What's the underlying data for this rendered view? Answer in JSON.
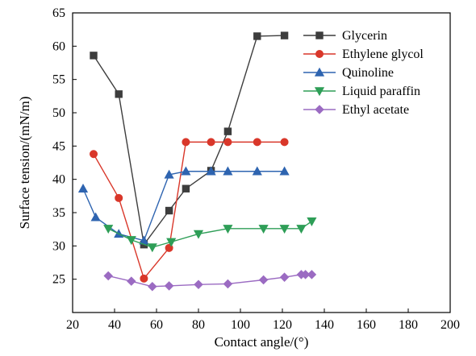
{
  "chart_data": {
    "type": "line",
    "title": "",
    "xlabel": "Contact angle/(°)",
    "ylabel": "Surface tension/(mN/m)",
    "xlim": [
      20,
      200
    ],
    "ylim": [
      20,
      65
    ],
    "xticks": [
      20,
      40,
      60,
      80,
      100,
      120,
      140,
      160,
      180,
      200
    ],
    "yticks": [
      25,
      30,
      35,
      40,
      45,
      50,
      55,
      60,
      65
    ],
    "xtick_labels": [
      "20",
      "40",
      "60",
      "80",
      "100",
      "120",
      "140",
      "160",
      "180",
      "200"
    ],
    "ytick_labels": [
      "25",
      "30",
      "35",
      "40",
      "45",
      "50",
      "55",
      "60",
      "65"
    ],
    "grid": false,
    "legend_position": "top-right",
    "series": [
      {
        "name": "Glycerin",
        "color": "#3d3d3d",
        "marker": "square",
        "points": [
          [
            30,
            58.6
          ],
          [
            42,
            52.8
          ],
          [
            54,
            30.2
          ],
          [
            66,
            35.3
          ],
          [
            74,
            38.6
          ],
          [
            86,
            41.3
          ],
          [
            94,
            47.2
          ],
          [
            108,
            61.5
          ],
          [
            121,
            61.6
          ]
        ]
      },
      {
        "name": "Ethylene glycol",
        "color": "#d9372a",
        "marker": "circle",
        "points": [
          [
            30,
            43.8
          ],
          [
            42,
            37.2
          ],
          [
            54,
            25.1
          ],
          [
            66,
            29.7
          ],
          [
            74,
            45.6
          ],
          [
            86,
            45.6
          ],
          [
            94,
            45.6
          ],
          [
            108,
            45.6
          ],
          [
            121,
            45.6
          ]
        ]
      },
      {
        "name": "Quinoline",
        "color": "#2e64b0",
        "marker": "triangle-up",
        "points": [
          [
            25,
            38.6
          ],
          [
            31,
            34.3
          ],
          [
            42,
            31.8
          ],
          [
            54,
            30.8
          ],
          [
            66,
            40.7
          ],
          [
            74,
            41.2
          ],
          [
            86,
            41.2
          ],
          [
            94,
            41.2
          ],
          [
            108,
            41.2
          ],
          [
            121,
            41.2
          ]
        ]
      },
      {
        "name": "Liquid paraffin",
        "color": "#2e9e57",
        "marker": "triangle-down",
        "points": [
          [
            37,
            32.6
          ],
          [
            48,
            30.9
          ],
          [
            58,
            29.8
          ],
          [
            67,
            30.6
          ],
          [
            80,
            31.8
          ],
          [
            94,
            32.6
          ],
          [
            111,
            32.6
          ],
          [
            121,
            32.6
          ],
          [
            129,
            32.6
          ],
          [
            134,
            33.7
          ]
        ]
      },
      {
        "name": "Ethyl acetate",
        "color": "#9b6bc2",
        "marker": "diamond",
        "points": [
          [
            37,
            25.5
          ],
          [
            48,
            24.7
          ],
          [
            58,
            23.9
          ],
          [
            66,
            24.0
          ],
          [
            80,
            24.2
          ],
          [
            94,
            24.3
          ],
          [
            111,
            24.9
          ],
          [
            121,
            25.3
          ],
          [
            129,
            25.7
          ],
          [
            131,
            25.7
          ],
          [
            134,
            25.7
          ]
        ]
      }
    ]
  }
}
